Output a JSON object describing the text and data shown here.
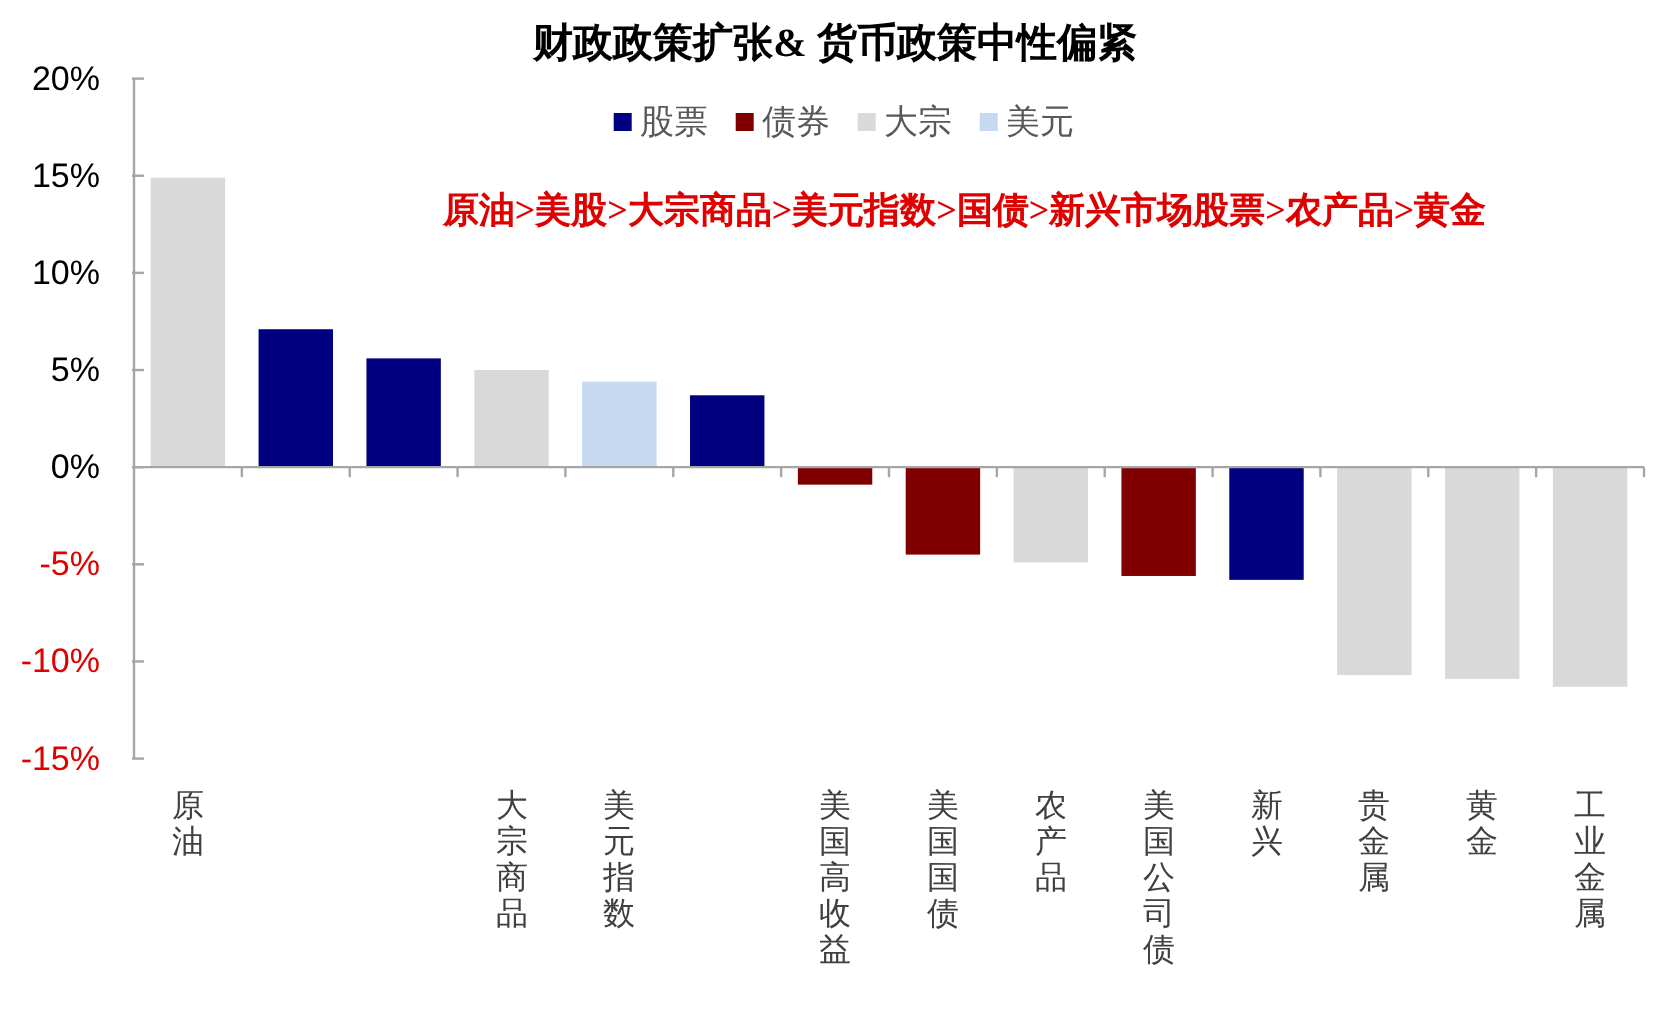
{
  "chart_data": {
    "type": "bar",
    "title": "财政政策扩张& 货币政策中性偏紧",
    "categories": [
      "原油",
      null,
      null,
      "大宗商品",
      "美元指数",
      null,
      "美国高收益",
      "美国国债",
      "农产品",
      "美国公司债",
      "新兴",
      "贵金属",
      "黄金",
      "工业金属"
    ],
    "series": [
      {
        "name": "股票",
        "color": "#000080",
        "values": [
          null,
          7.1,
          5.6,
          null,
          null,
          3.7,
          null,
          null,
          null,
          null,
          -5.8,
          null,
          null,
          null
        ]
      },
      {
        "name": "债券",
        "color": "#800000",
        "values": [
          null,
          null,
          null,
          null,
          null,
          null,
          -0.9,
          -4.5,
          null,
          -5.6,
          null,
          null,
          null,
          null
        ]
      },
      {
        "name": "大宗",
        "color": "#d9d9d9",
        "values": [
          14.9,
          null,
          null,
          5.0,
          null,
          null,
          null,
          null,
          -4.9,
          null,
          null,
          -10.7,
          -10.9,
          -11.3
        ]
      },
      {
        "name": "美元",
        "color": "#c6d9f0",
        "values": [
          null,
          null,
          null,
          null,
          4.4,
          null,
          null,
          null,
          null,
          null,
          null,
          null,
          null,
          null
        ]
      }
    ],
    "stacked": true,
    "ylim": [
      -15,
      20
    ],
    "yticks": [
      {
        "value": -15,
        "label": "-15%"
      },
      {
        "value": -10,
        "label": "-10%"
      },
      {
        "value": -5,
        "label": "-5%"
      },
      {
        "value": 0,
        "label": "0%"
      },
      {
        "value": 5,
        "label": "5%"
      },
      {
        "value": 10,
        "label": "10%"
      },
      {
        "value": 15,
        "label": "15%"
      },
      {
        "value": 20,
        "label": "20%"
      }
    ],
    "annotations": [
      "原油>美股>大宗商品>美元指数>国债>新兴市场股票>农产品>黄金"
    ],
    "legend": "top"
  }
}
